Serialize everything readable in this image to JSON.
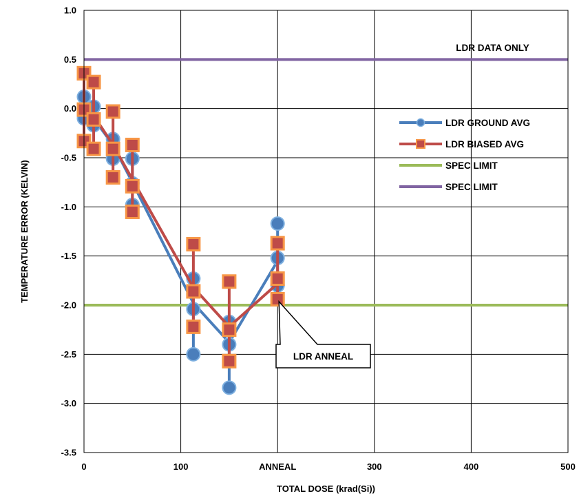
{
  "chart_data": {
    "type": "line",
    "title": "",
    "xlabel": "TOTAL DOSE (krad(Si))",
    "ylabel": "TEMPERATURE ERROR (KELVIN)",
    "xlim": [
      0,
      500
    ],
    "ylim": [
      -3.5,
      1.0
    ],
    "x_ticks": [
      {
        "value": 0,
        "label": "0"
      },
      {
        "value": 100,
        "label": "100"
      },
      {
        "value": 200,
        "label": "ANNEAL"
      },
      {
        "value": 300,
        "label": "300"
      },
      {
        "value": 400,
        "label": "400"
      },
      {
        "value": 500,
        "label": "500"
      }
    ],
    "y_ticks": [
      {
        "value": 1.0,
        "label": "1.0"
      },
      {
        "value": 0.5,
        "label": "0.5"
      },
      {
        "value": 0.0,
        "label": "0.0"
      },
      {
        "value": -0.5,
        "label": "-0.5"
      },
      {
        "value": -1.0,
        "label": "-1.0"
      },
      {
        "value": -1.5,
        "label": "-1.5"
      },
      {
        "value": -2.0,
        "label": "-2.0"
      },
      {
        "value": -2.5,
        "label": "-2.5"
      },
      {
        "value": -3.0,
        "label": "-3.0"
      },
      {
        "value": -3.5,
        "label": "-3.5"
      }
    ],
    "grid": true,
    "legend_position": "right",
    "series": [
      {
        "name": "LDR GROUND AVG",
        "color": "#4a7ebb",
        "marker": "circle",
        "x": [
          0,
          10,
          30,
          50,
          113,
          150,
          200
        ],
        "y": [
          0.0,
          -0.1,
          -0.37,
          -0.75,
          -1.98,
          -2.38,
          -1.55
        ],
        "spread": [
          {
            "x": 0,
            "values": [
              0.12,
              -0.1
            ]
          },
          {
            "x": 10,
            "values": [
              0.02,
              -0.17
            ]
          },
          {
            "x": 30,
            "values": [
              -0.31,
              -0.51
            ]
          },
          {
            "x": 50,
            "values": [
              -0.51,
              -0.76,
              -0.98
            ]
          },
          {
            "x": 113,
            "values": [
              -1.73,
              -2.04,
              -2.5
            ]
          },
          {
            "x": 150,
            "values": [
              -2.17,
              -2.4,
              -2.84
            ]
          },
          {
            "x": 200,
            "values": [
              -1.17,
              -1.52,
              -1.8
            ]
          }
        ]
      },
      {
        "name": "LDR BIASED AVG",
        "color": "#be4b48",
        "marker": "square",
        "x": [
          0,
          10,
          30,
          50,
          113,
          150,
          200
        ],
        "y": [
          0.0,
          -0.07,
          -0.37,
          -0.72,
          -1.82,
          -2.22,
          -1.78
        ],
        "spread": [
          {
            "x": 0,
            "values": [
              0.36,
              -0.01,
              -0.33
            ]
          },
          {
            "x": 10,
            "values": [
              0.27,
              -0.11,
              -0.41
            ]
          },
          {
            "x": 30,
            "values": [
              -0.03,
              -0.41,
              -0.7
            ]
          },
          {
            "x": 50,
            "values": [
              -0.37,
              -0.79,
              -1.05
            ]
          },
          {
            "x": 113,
            "values": [
              -1.38,
              -1.86,
              -2.22
            ]
          },
          {
            "x": 150,
            "values": [
              -1.76,
              -2.25,
              -2.57
            ]
          },
          {
            "x": 200,
            "values": [
              -1.37,
              -1.73,
              -1.94
            ]
          }
        ]
      },
      {
        "name": "SPEC LIMIT",
        "color": "#9bbb59",
        "marker": "none",
        "x": [
          0,
          500
        ],
        "y": [
          -2.0,
          -2.0
        ]
      },
      {
        "name": "SPEC LIMIT",
        "color": "#8064a2",
        "marker": "none",
        "x": [
          0,
          500
        ],
        "y": [
          0.5,
          0.5
        ]
      }
    ],
    "annotations": [
      {
        "text": "LDR DATA  ONLY",
        "x": 425,
        "y": 0.62
      },
      {
        "text": "LDR ANNEAL",
        "x": 200,
        "y": -1.95
      }
    ]
  }
}
